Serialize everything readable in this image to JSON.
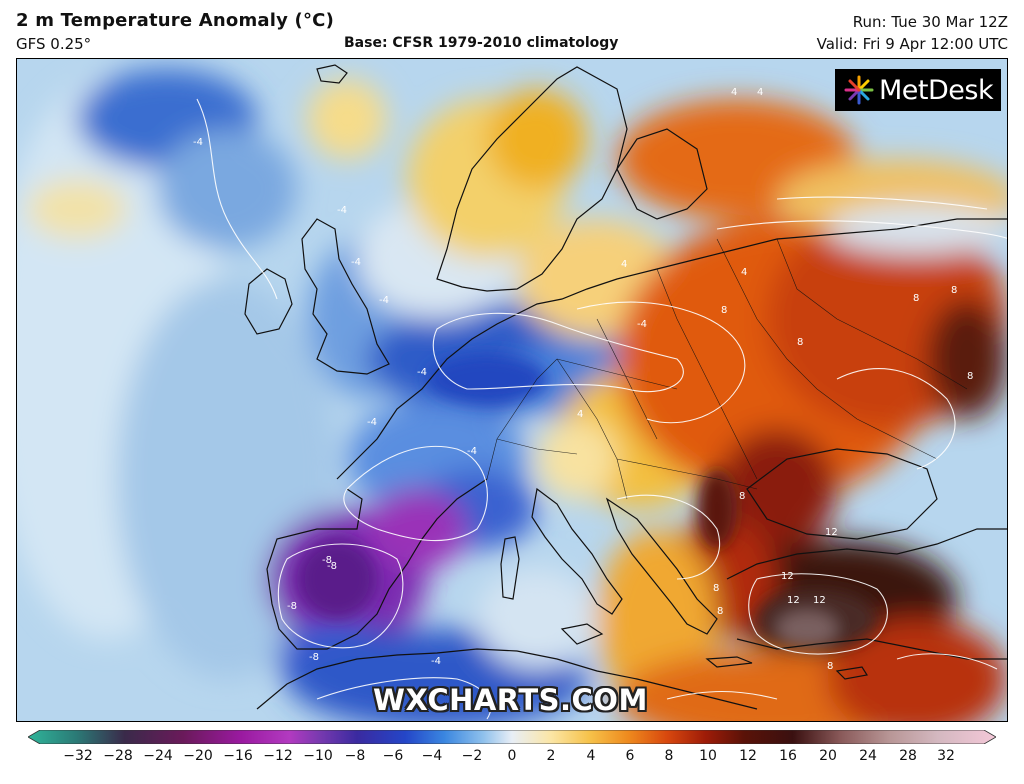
{
  "header": {
    "title": "2 m Temperature Anomaly (°C)",
    "model": "GFS 0.25°",
    "base": "Base: CFSR 1979-2010 climatology",
    "run": "Run: Tue 30 Mar 12Z",
    "valid": "Valid: Fri 9 Apr 12:00 UTC"
  },
  "branding": {
    "logo_text": "MetDesk",
    "watermark": "WXCHARTS.COM"
  },
  "map": {
    "contour_labels": [
      "-4",
      "-4",
      "-4",
      "-4",
      "-4",
      "-4",
      "-4",
      "-8",
      "-8",
      "-8",
      "-8",
      "-4",
      "-4",
      "4",
      "4",
      "4",
      "4",
      "8",
      "8",
      "8",
      "8",
      "8",
      "8",
      "8",
      "12",
      "12",
      "12",
      "12",
      "8",
      "8",
      "4"
    ]
  },
  "colorbar": {
    "ticks": [
      "−32",
      "−28",
      "−24",
      "−20",
      "−16",
      "−12",
      "−10",
      "−8",
      "−6",
      "−4",
      "−2",
      "0",
      "2",
      "4",
      "6",
      "8",
      "10",
      "12",
      "16",
      "20",
      "24",
      "28",
      "32"
    ],
    "colors": [
      "#2fb59a",
      "#2b7a76",
      "#3a2a4a",
      "#6a1a5a",
      "#9a1aa0",
      "#b23ac0",
      "#7a3ab0",
      "#3a2aa0",
      "#2446c8",
      "#3a86e0",
      "#8ec0ec",
      "#e8eef6",
      "#fbe6a6",
      "#f6c24a",
      "#ee8a1e",
      "#d8480e",
      "#9e1c08",
      "#5a1208",
      "#3a1010",
      "#8a5a5a",
      "#b89696",
      "#d4b8c0",
      "#f4c8d8"
    ]
  },
  "colors": {
    "cold_deep": "#6a1a8a",
    "cold": "#2f5cc8",
    "cool": "#a9cdea",
    "neutral": "#e8eef6",
    "warm": "#f6c24a",
    "hot": "#e05a10",
    "very_hot": "#5a1208"
  }
}
